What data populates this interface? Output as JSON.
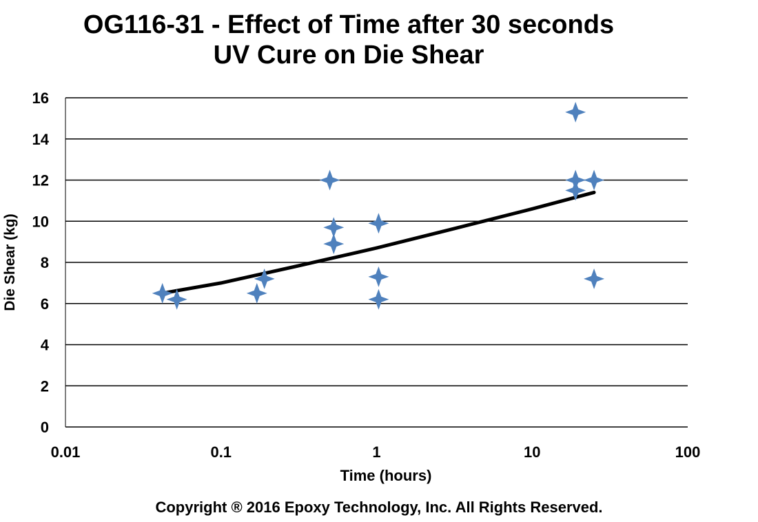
{
  "chart_data": {
    "type": "scatter",
    "title_lines": [
      "OG116-31 - Effect of Time after 30 seconds",
      "UV Cure on Die Shear"
    ],
    "xlabel": "Time (hours)",
    "ylabel": "Die Shear (kg)",
    "x_scale": "log",
    "xlim": [
      0.01,
      100
    ],
    "ylim": [
      0,
      16
    ],
    "x_ticks": [
      0.01,
      0.1,
      1,
      10,
      100
    ],
    "x_tick_labels": [
      "0.01",
      "0.1",
      "1",
      "10",
      "100"
    ],
    "y_ticks": [
      0,
      2,
      4,
      6,
      8,
      10,
      12,
      14,
      16
    ],
    "y_tick_labels": [
      "0",
      "2",
      "4",
      "6",
      "8",
      "10",
      "12",
      "14",
      "16"
    ],
    "grid": "horizontal",
    "legend": "none",
    "marker": "four-point-star",
    "marker_color": "#4f81bd",
    "trendline_color": "#000000",
    "points": [
      {
        "x": 0.042,
        "y": 6.5
      },
      {
        "x": 0.052,
        "y": 6.2
      },
      {
        "x": 0.17,
        "y": 6.5
      },
      {
        "x": 0.19,
        "y": 7.2
      },
      {
        "x": 0.5,
        "y": 12.0
      },
      {
        "x": 0.53,
        "y": 9.7
      },
      {
        "x": 0.53,
        "y": 8.9
      },
      {
        "x": 1.03,
        "y": 9.9
      },
      {
        "x": 1.03,
        "y": 7.3
      },
      {
        "x": 1.03,
        "y": 6.2
      },
      {
        "x": 19,
        "y": 15.3
      },
      {
        "x": 19,
        "y": 12.0
      },
      {
        "x": 19,
        "y": 11.5
      },
      {
        "x": 25,
        "y": 12.0
      },
      {
        "x": 25,
        "y": 7.2
      }
    ],
    "trendline": [
      {
        "x": 0.042,
        "y": 6.5
      },
      {
        "x": 0.1,
        "y": 7.0
      },
      {
        "x": 0.3,
        "y": 7.8
      },
      {
        "x": 1,
        "y": 8.7
      },
      {
        "x": 3,
        "y": 9.6
      },
      {
        "x": 10,
        "y": 10.6
      },
      {
        "x": 25,
        "y": 11.4
      }
    ]
  },
  "footer": {
    "copyright": "Copyright ® 2016 Epoxy Technology, Inc. All Rights Reserved."
  }
}
